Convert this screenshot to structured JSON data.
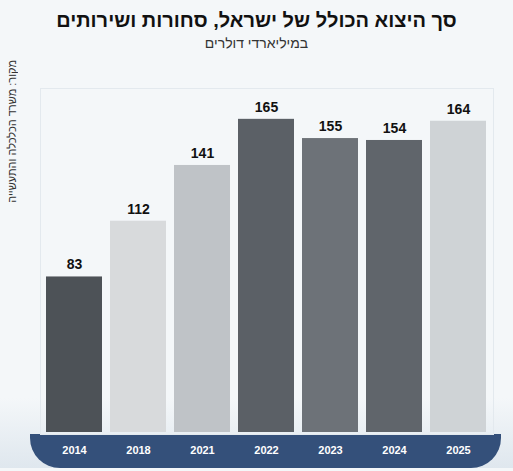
{
  "chart_data": {
    "type": "bar",
    "title": "סך היצוא הכולל של ישראל, סחורות ושירותים",
    "subtitle": "במיליארדי דולרים",
    "source": "מקור: משרד הכלכלה והתעשייה",
    "categories": [
      "2014",
      "2018",
      "2021",
      "2022",
      "2023",
      "2024",
      "2025"
    ],
    "values": [
      83,
      112,
      141,
      165,
      155,
      154,
      164
    ],
    "colors": [
      "#4d5257",
      "#d8dadc",
      "#bfc3c7",
      "#5b6066",
      "#6d7278",
      "#60656b",
      "#cfd3d6"
    ],
    "ylim": [
      0,
      180
    ],
    "yticks": [],
    "grid": false,
    "data_labels": true,
    "tick_labels": "x"
  }
}
